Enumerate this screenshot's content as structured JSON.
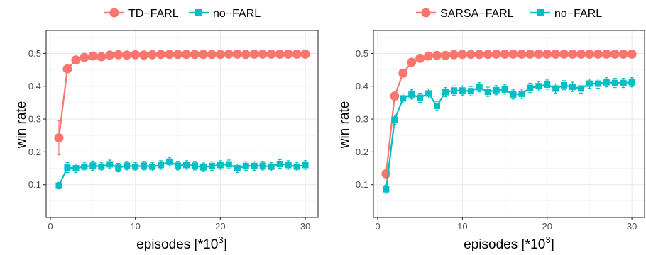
{
  "chart_data": [
    {
      "type": "line",
      "title": "",
      "xlabel": "episodes [*10",
      "xlabel_sup": "3",
      "xlabel_close": "]",
      "ylabel": "win rate",
      "xlim": [
        -0.5,
        31.5
      ],
      "ylim": [
        0.0,
        0.57
      ],
      "xticks": [
        0,
        10,
        20,
        30
      ],
      "yticks": [
        0.1,
        0.2,
        0.3,
        0.4,
        0.5
      ],
      "grid": true,
      "legend_position": "top",
      "x": [
        1,
        2,
        3,
        4,
        5,
        6,
        7,
        8,
        9,
        10,
        11,
        12,
        13,
        14,
        15,
        16,
        17,
        18,
        19,
        20,
        21,
        22,
        23,
        24,
        25,
        26,
        27,
        28,
        29,
        30
      ],
      "series": [
        {
          "name": "TD−FARL",
          "color": "#F8766D",
          "marker": "circle",
          "values": [
            0.243,
            0.453,
            0.48,
            0.488,
            0.492,
            0.49,
            0.495,
            0.496,
            0.495,
            0.496,
            0.495,
            0.496,
            0.497,
            0.497,
            0.497,
            0.497,
            0.497,
            0.497,
            0.497,
            0.497,
            0.498,
            0.498,
            0.497,
            0.498,
            0.498,
            0.498,
            0.498,
            0.498,
            0.498,
            0.498
          ],
          "errors": [
            0.052,
            0.008,
            0.006,
            0.005,
            0.005,
            0.004,
            0.004,
            0.004,
            0.004,
            0.004,
            0.004,
            0.004,
            0.004,
            0.004,
            0.004,
            0.004,
            0.004,
            0.004,
            0.004,
            0.004,
            0.004,
            0.004,
            0.004,
            0.004,
            0.004,
            0.004,
            0.004,
            0.004,
            0.004,
            0.004
          ]
        },
        {
          "name": "no−FARL",
          "color": "#00BFC4",
          "marker": "square",
          "values": [
            0.097,
            0.152,
            0.15,
            0.155,
            0.158,
            0.155,
            0.162,
            0.152,
            0.158,
            0.155,
            0.158,
            0.155,
            0.16,
            0.17,
            0.158,
            0.16,
            0.158,
            0.153,
            0.157,
            0.16,
            0.162,
            0.15,
            0.157,
            0.157,
            0.158,
            0.155,
            0.163,
            0.16,
            0.155,
            0.16
          ],
          "errors": [
            0.01,
            0.015,
            0.013,
            0.013,
            0.014,
            0.013,
            0.013,
            0.013,
            0.013,
            0.013,
            0.013,
            0.013,
            0.013,
            0.013,
            0.013,
            0.013,
            0.013,
            0.013,
            0.013,
            0.013,
            0.013,
            0.013,
            0.013,
            0.013,
            0.013,
            0.013,
            0.013,
            0.013,
            0.013,
            0.013
          ]
        }
      ]
    },
    {
      "type": "line",
      "title": "",
      "xlabel": "episodes [*10",
      "xlabel_sup": "3",
      "xlabel_close": "]",
      "ylabel": "win rate",
      "xlim": [
        -0.5,
        31.5
      ],
      "ylim": [
        0.0,
        0.57
      ],
      "xticks": [
        0,
        10,
        20,
        30
      ],
      "yticks": [
        0.1,
        0.2,
        0.3,
        0.4,
        0.5
      ],
      "grid": true,
      "legend_position": "top",
      "x": [
        1,
        2,
        3,
        4,
        5,
        6,
        7,
        8,
        9,
        10,
        11,
        12,
        13,
        14,
        15,
        16,
        17,
        18,
        19,
        20,
        21,
        22,
        23,
        24,
        25,
        26,
        27,
        28,
        29,
        30
      ],
      "series": [
        {
          "name": "SARSA−FARL",
          "color": "#F8766D",
          "marker": "circle",
          "values": [
            0.133,
            0.37,
            0.44,
            0.473,
            0.485,
            0.492,
            0.494,
            0.494,
            0.496,
            0.497,
            0.497,
            0.497,
            0.497,
            0.498,
            0.498,
            0.498,
            0.498,
            0.498,
            0.498,
            0.498,
            0.498,
            0.498,
            0.498,
            0.498,
            0.498,
            0.498,
            0.498,
            0.498,
            0.498,
            0.498
          ],
          "errors": [
            0.012,
            0.012,
            0.008,
            0.006,
            0.005,
            0.004,
            0.004,
            0.004,
            0.004,
            0.004,
            0.004,
            0.004,
            0.004,
            0.004,
            0.004,
            0.004,
            0.004,
            0.004,
            0.004,
            0.004,
            0.004,
            0.004,
            0.004,
            0.004,
            0.004,
            0.004,
            0.004,
            0.004,
            0.004,
            0.004
          ]
        },
        {
          "name": "no−FARL",
          "color": "#00BFC4",
          "marker": "square",
          "values": [
            0.086,
            0.298,
            0.363,
            0.375,
            0.365,
            0.378,
            0.34,
            0.382,
            0.387,
            0.387,
            0.385,
            0.397,
            0.383,
            0.388,
            0.39,
            0.375,
            0.377,
            0.395,
            0.4,
            0.405,
            0.393,
            0.403,
            0.398,
            0.393,
            0.408,
            0.408,
            0.412,
            0.41,
            0.41,
            0.412
          ],
          "errors": [
            0.012,
            0.014,
            0.014,
            0.014,
            0.014,
            0.014,
            0.014,
            0.014,
            0.014,
            0.014,
            0.014,
            0.014,
            0.014,
            0.014,
            0.014,
            0.014,
            0.014,
            0.014,
            0.014,
            0.014,
            0.014,
            0.014,
            0.014,
            0.014,
            0.014,
            0.014,
            0.014,
            0.014,
            0.014,
            0.014
          ]
        }
      ]
    }
  ]
}
